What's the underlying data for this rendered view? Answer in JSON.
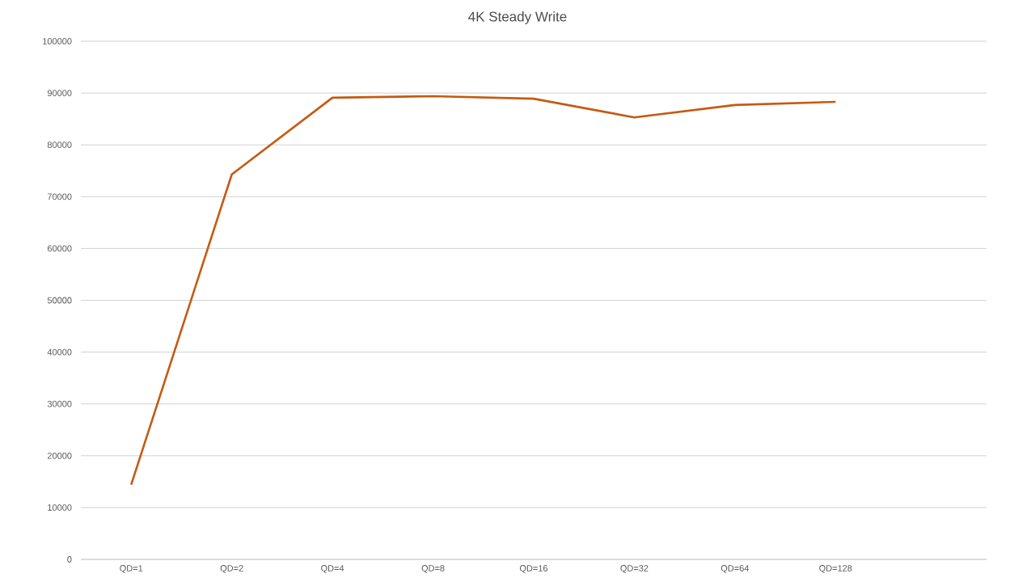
{
  "chart_data": {
    "type": "line",
    "title": "4K Steady Write",
    "categories": [
      "QD=1",
      "QD=2",
      "QD=4",
      "QD=8",
      "QD=16",
      "QD=32",
      "QD=64",
      "QD=128",
      null
    ],
    "series": [
      {
        "color": "#c55a11",
        "values": [
          14400,
          74300,
          89100,
          89400,
          88900,
          85300,
          87700,
          88300,
          null
        ]
      }
    ],
    "ylim": [
      0,
      100000
    ],
    "yticks": [
      0,
      10000,
      20000,
      30000,
      40000,
      50000,
      60000,
      70000,
      80000,
      90000,
      100000
    ],
    "grid": "y",
    "line_style": "solid"
  }
}
